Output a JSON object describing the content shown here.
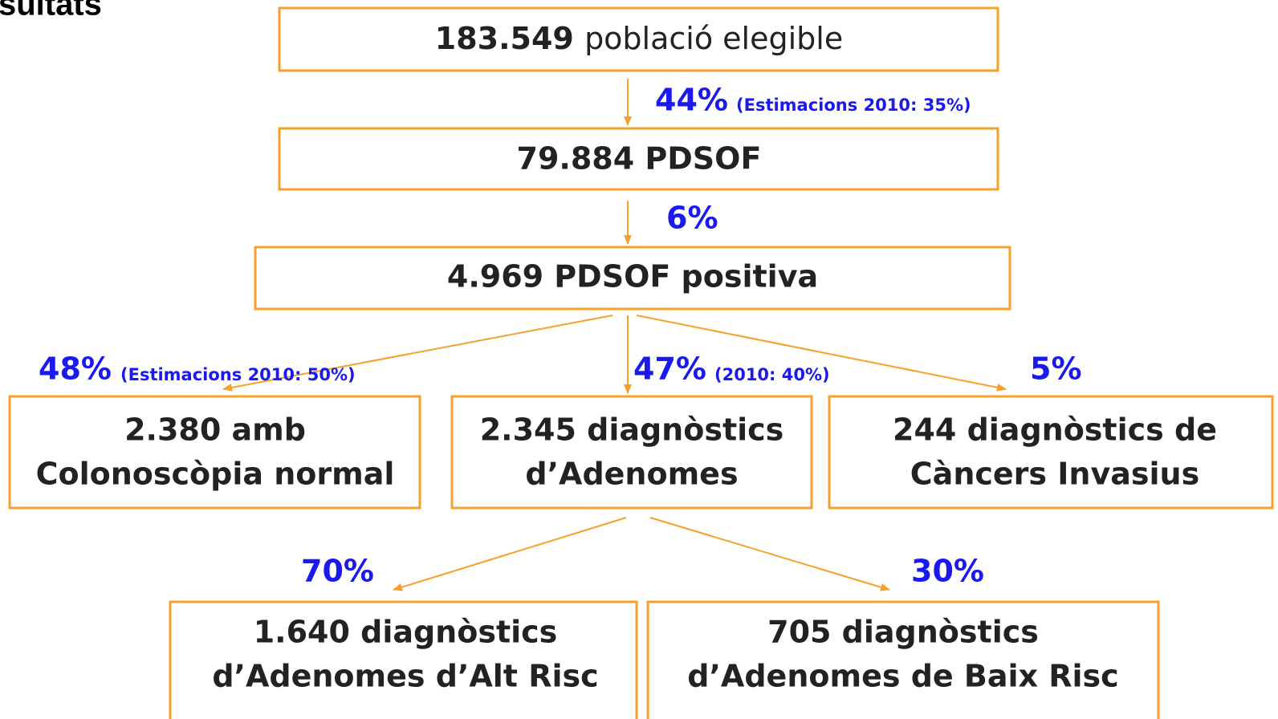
{
  "title": "sultats",
  "nodes": [
    {
      "number": "183.549",
      "text": "població elegible"
    },
    {
      "lines": [
        "79.884 PDSOF"
      ]
    },
    {
      "lines": [
        "4.969 PDSOF positiva"
      ]
    },
    {
      "lines": [
        "2.380 amb",
        "Colonoscòpia normal"
      ]
    },
    {
      "lines": [
        "2.345 diagnòstics",
        "d’Adenomes"
      ]
    },
    {
      "lines": [
        "244 diagnòstics de",
        "Càncers Invasius"
      ]
    },
    {
      "lines": [
        "1.640 diagnòstics",
        "d’Adenomes d’Alt Risc"
      ]
    },
    {
      "lines": [
        "705 diagnòstics",
        "d’Adenomes de Baix Risc"
      ]
    }
  ],
  "edges": [
    {
      "percent": "44%",
      "note": "(Estimacions 2010: 35%)"
    },
    {
      "percent": "6%"
    },
    {
      "percent": "48%",
      "note": "(Estimacions 2010: 50%)"
    },
    {
      "percent": "47%",
      "note": "(2010: 40%)"
    },
    {
      "percent": "5%"
    },
    {
      "percent": "70%"
    },
    {
      "percent": "30%"
    }
  ]
}
